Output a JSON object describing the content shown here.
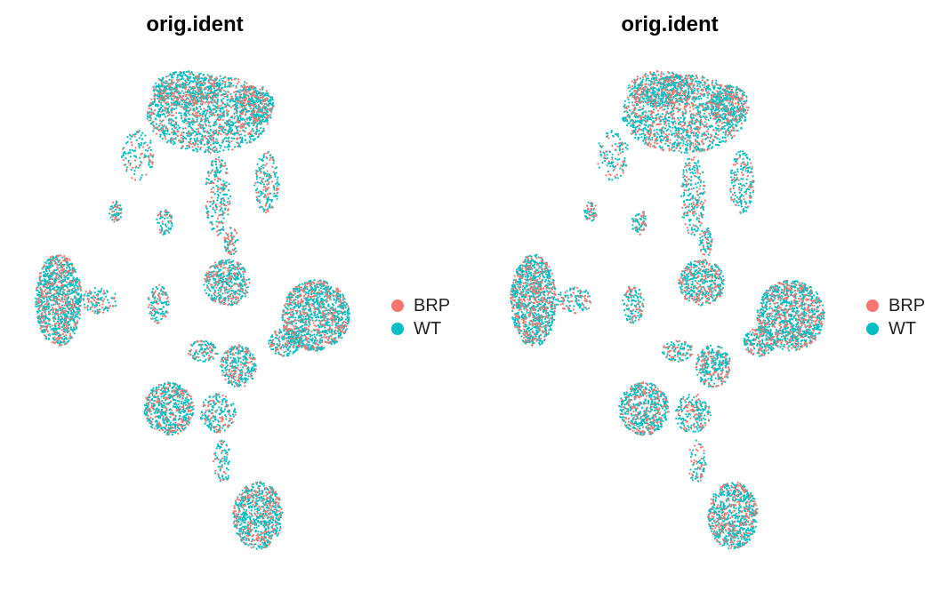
{
  "chart_data": [
    {
      "type": "scatter",
      "title": "orig.ident",
      "xlabel": "",
      "ylabel": "",
      "grid": false,
      "legend_position": "right",
      "series": [
        {
          "name": "BRP",
          "color": "#F8766D"
        },
        {
          "name": "WT",
          "color": "#00BFC4"
        }
      ],
      "clusters": [
        {
          "x": 235,
          "y": 128,
          "rx": 70,
          "ry": 44,
          "n": 1500
        },
        {
          "x": 210,
          "y": 100,
          "rx": 38,
          "ry": 20,
          "n": 400
        },
        {
          "x": 286,
          "y": 118,
          "rx": 22,
          "ry": 22,
          "n": 300
        },
        {
          "x": 300,
          "y": 205,
          "rx": 14,
          "ry": 35,
          "n": 180
        },
        {
          "x": 155,
          "y": 175,
          "rx": 18,
          "ry": 28,
          "n": 120
        },
        {
          "x": 245,
          "y": 220,
          "rx": 14,
          "ry": 45,
          "n": 220
        },
        {
          "x": 130,
          "y": 238,
          "rx": 7,
          "ry": 12,
          "n": 60
        },
        {
          "x": 185,
          "y": 250,
          "rx": 9,
          "ry": 14,
          "n": 70
        },
        {
          "x": 66,
          "y": 338,
          "rx": 26,
          "ry": 52,
          "n": 1100
        },
        {
          "x": 112,
          "y": 338,
          "rx": 20,
          "ry": 15,
          "n": 110
        },
        {
          "x": 255,
          "y": 318,
          "rx": 26,
          "ry": 26,
          "n": 450
        },
        {
          "x": 260,
          "y": 272,
          "rx": 8,
          "ry": 16,
          "n": 70
        },
        {
          "x": 178,
          "y": 342,
          "rx": 12,
          "ry": 22,
          "n": 130
        },
        {
          "x": 355,
          "y": 355,
          "rx": 38,
          "ry": 40,
          "n": 1200
        },
        {
          "x": 320,
          "y": 385,
          "rx": 18,
          "ry": 16,
          "n": 200
        },
        {
          "x": 268,
          "y": 412,
          "rx": 20,
          "ry": 24,
          "n": 300
        },
        {
          "x": 228,
          "y": 395,
          "rx": 18,
          "ry": 12,
          "n": 110
        },
        {
          "x": 190,
          "y": 460,
          "rx": 28,
          "ry": 30,
          "n": 600
        },
        {
          "x": 245,
          "y": 465,
          "rx": 20,
          "ry": 22,
          "n": 200
        },
        {
          "x": 250,
          "y": 520,
          "rx": 10,
          "ry": 25,
          "n": 80
        },
        {
          "x": 290,
          "y": 580,
          "rx": 28,
          "ry": 38,
          "n": 750
        }
      ]
    },
    {
      "type": "scatter",
      "title": "orig.ident",
      "xlabel": "",
      "ylabel": "",
      "grid": false,
      "legend_position": "right",
      "series": [
        {
          "name": "BRP",
          "color": "#F8766D"
        },
        {
          "name": "WT",
          "color": "#00BFC4"
        }
      ],
      "clusters": [
        {
          "x": 235,
          "y": 128,
          "rx": 70,
          "ry": 44,
          "n": 1500
        },
        {
          "x": 210,
          "y": 100,
          "rx": 38,
          "ry": 20,
          "n": 400
        },
        {
          "x": 286,
          "y": 118,
          "rx": 22,
          "ry": 22,
          "n": 300
        },
        {
          "x": 300,
          "y": 205,
          "rx": 14,
          "ry": 35,
          "n": 180
        },
        {
          "x": 155,
          "y": 175,
          "rx": 18,
          "ry": 28,
          "n": 120
        },
        {
          "x": 245,
          "y": 220,
          "rx": 14,
          "ry": 45,
          "n": 220
        },
        {
          "x": 130,
          "y": 238,
          "rx": 7,
          "ry": 12,
          "n": 60
        },
        {
          "x": 185,
          "y": 250,
          "rx": 9,
          "ry": 14,
          "n": 70
        },
        {
          "x": 66,
          "y": 338,
          "rx": 26,
          "ry": 52,
          "n": 1100
        },
        {
          "x": 112,
          "y": 338,
          "rx": 20,
          "ry": 15,
          "n": 110
        },
        {
          "x": 255,
          "y": 318,
          "rx": 26,
          "ry": 26,
          "n": 450
        },
        {
          "x": 260,
          "y": 272,
          "rx": 8,
          "ry": 16,
          "n": 70
        },
        {
          "x": 178,
          "y": 342,
          "rx": 12,
          "ry": 22,
          "n": 130
        },
        {
          "x": 355,
          "y": 355,
          "rx": 38,
          "ry": 40,
          "n": 1200
        },
        {
          "x": 320,
          "y": 385,
          "rx": 18,
          "ry": 16,
          "n": 200
        },
        {
          "x": 268,
          "y": 412,
          "rx": 20,
          "ry": 24,
          "n": 300
        },
        {
          "x": 228,
          "y": 395,
          "rx": 18,
          "ry": 12,
          "n": 110
        },
        {
          "x": 190,
          "y": 460,
          "rx": 28,
          "ry": 30,
          "n": 600
        },
        {
          "x": 245,
          "y": 465,
          "rx": 20,
          "ry": 22,
          "n": 200
        },
        {
          "x": 250,
          "y": 520,
          "rx": 10,
          "ry": 25,
          "n": 80
        },
        {
          "x": 290,
          "y": 580,
          "rx": 28,
          "ry": 38,
          "n": 750
        }
      ]
    }
  ]
}
